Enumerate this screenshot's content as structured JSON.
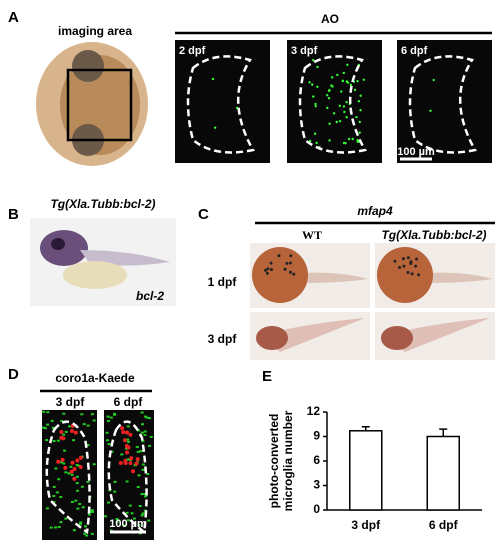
{
  "panel_a": {
    "label": "A",
    "imaging_title": "imaging area",
    "group_title": "AO",
    "images": [
      "2 dpf",
      "3 dpf",
      "6 dpf"
    ],
    "scale_bar": "100 µm"
  },
  "panel_b": {
    "label": "B",
    "title": "Tg(Xla.Tubb:bcl-2)",
    "probe": "bcl-2"
  },
  "panel_c": {
    "label": "C",
    "group_title": "mfap4",
    "columns": [
      "WT",
      "Tg(Xla.Tubb:bcl-2)"
    ],
    "rows": [
      "1 dpf",
      "3 dpf"
    ]
  },
  "panel_d": {
    "label": "D",
    "group_title": "coro1a-Kaede",
    "images": [
      "3 dpf",
      "6 dpf"
    ],
    "scale_bar": "100 µm"
  },
  "chart_data": {
    "type": "bar",
    "panel_label": "E",
    "ylabel": [
      "photo-converted",
      "microglia number"
    ],
    "categories": [
      "3 dpf",
      "6 dpf"
    ],
    "values": [
      9.7,
      9.0
    ],
    "errors": [
      0.5,
      0.9
    ],
    "color": "#ffffff",
    "ylim": [
      0,
      12
    ],
    "yticks": [
      0,
      3,
      6,
      9,
      12
    ]
  }
}
